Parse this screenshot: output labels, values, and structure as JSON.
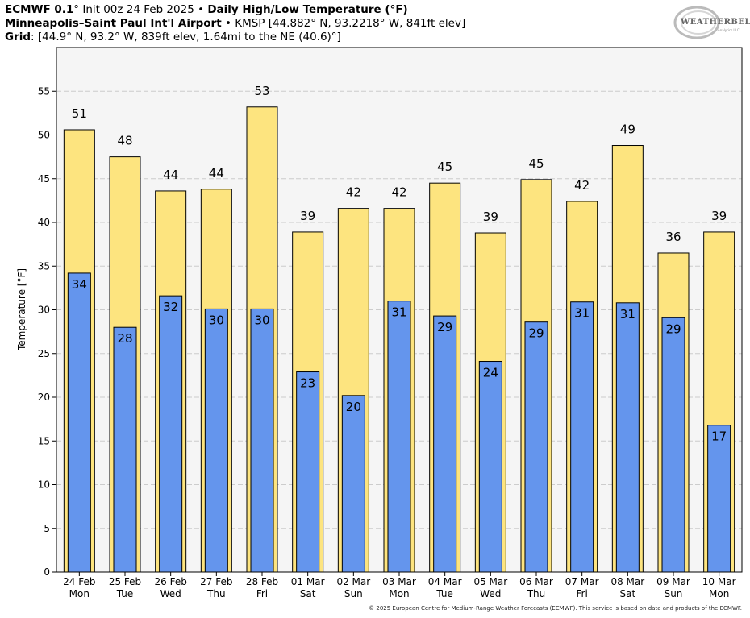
{
  "header": {
    "line1_bold": "ECMWF 0.1",
    "line1_rest": "° Init 00z 24 Feb 2025",
    "line1_sep": " • ",
    "line1_title": "Daily High/Low Temperature (°F)",
    "line2_bold": "Minneapolis–Saint Paul Int'l Airport",
    "line2_rest": " • KMSP [44.882° N, 93.2218° W, 841ft elev]",
    "line3_bold": "Grid",
    "line3_rest": ": [44.9° N, 93.2° W, 839ft elev, 1.64mi to the NE (40.6)°]"
  },
  "logo": {
    "text": "WEATHERBELL",
    "sub": "Analytics LLC"
  },
  "footer": "© 2025 European Centre for Medium-Range Weather Forecasts (ECMWF). This service is based on data and products of the ECMWF.",
  "colors": {
    "high": "#fde47f",
    "low": "#6495ed",
    "plot_bg": "#f5f5f5",
    "grid": "#cccccc"
  },
  "chart_data": {
    "type": "bar",
    "ylabel": "Temperature [°F]",
    "ylim": [
      0,
      60
    ],
    "yticks": [
      0,
      5,
      10,
      15,
      20,
      25,
      30,
      35,
      40,
      45,
      50,
      55
    ],
    "categories": [
      [
        "24 Feb",
        "Mon"
      ],
      [
        "25 Feb",
        "Tue"
      ],
      [
        "26 Feb",
        "Wed"
      ],
      [
        "27 Feb",
        "Thu"
      ],
      [
        "28 Feb",
        "Fri"
      ],
      [
        "01 Mar",
        "Sat"
      ],
      [
        "02 Mar",
        "Sun"
      ],
      [
        "03 Mar",
        "Mon"
      ],
      [
        "04 Mar",
        "Tue"
      ],
      [
        "05 Mar",
        "Wed"
      ],
      [
        "06 Mar",
        "Thu"
      ],
      [
        "07 Mar",
        "Fri"
      ],
      [
        "08 Mar",
        "Sat"
      ],
      [
        "09 Mar",
        "Sun"
      ],
      [
        "10 Mar",
        "Mon"
      ]
    ],
    "series": [
      {
        "name": "High",
        "values": [
          50.6,
          47.5,
          43.6,
          43.8,
          53.2,
          38.9,
          41.6,
          41.6,
          44.5,
          38.8,
          44.9,
          42.4,
          48.8,
          36.5,
          38.9
        ],
        "labels": [
          "51",
          "48",
          "44",
          "44",
          "53",
          "39",
          "42",
          "42",
          "45",
          "39",
          "45",
          "42",
          "49",
          "36",
          "39"
        ]
      },
      {
        "name": "Low",
        "values": [
          34.2,
          28.0,
          31.6,
          30.1,
          30.1,
          22.9,
          20.2,
          31.0,
          29.3,
          24.1,
          28.6,
          30.9,
          30.8,
          29.1,
          16.8
        ],
        "labels": [
          "34",
          "28",
          "32",
          "30",
          "30",
          "23",
          "20",
          "31",
          "29",
          "24",
          "29",
          "31",
          "31",
          "29",
          "17"
        ]
      }
    ]
  }
}
